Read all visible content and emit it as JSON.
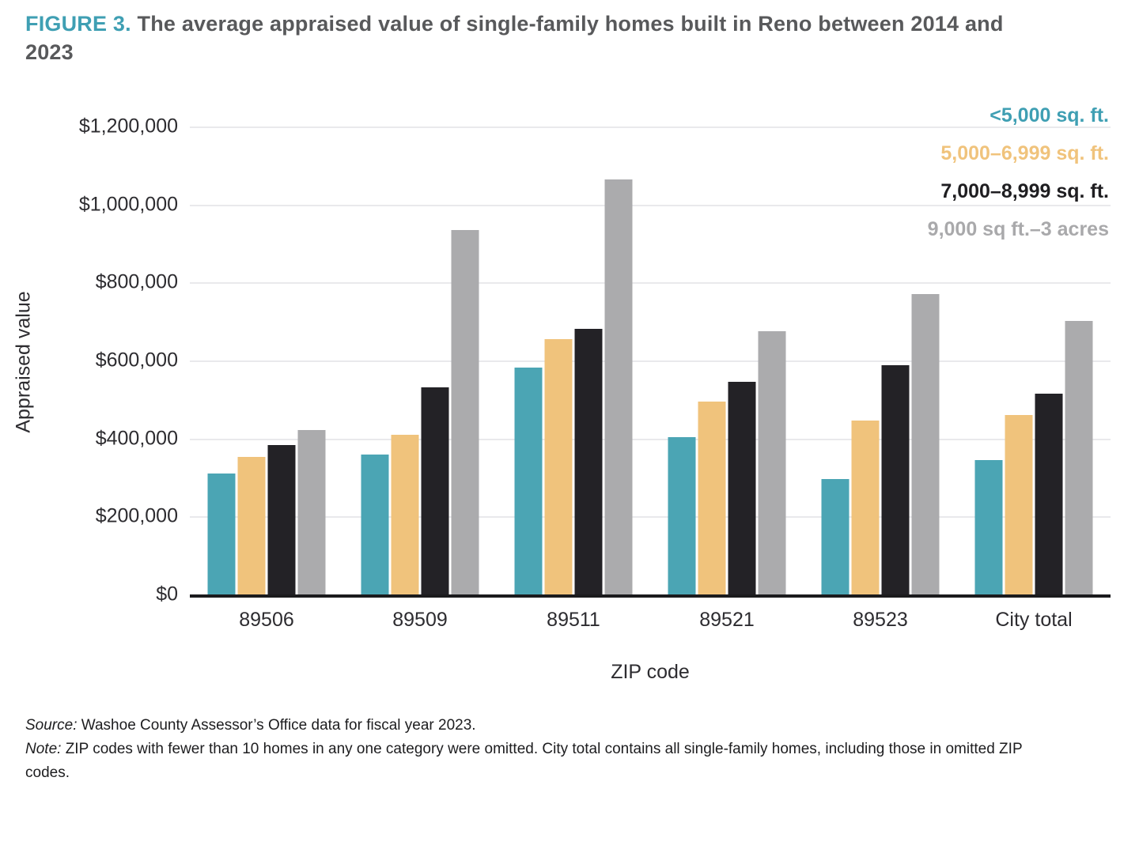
{
  "figure": {
    "label": "FIGURE 3.",
    "title_text": " The average appraised value of single-family homes built in Reno between 2014 and 2023"
  },
  "colors": {
    "accent_teal": "#3f9fb3",
    "title_gray": "#58595b",
    "axis_text": "#2d2c30",
    "gridline": "#e9e9ec",
    "axis_line": "#1b1b1d",
    "series": [
      "#4ba5b4",
      "#f0c37c",
      "#232226",
      "#ababad"
    ]
  },
  "legend": [
    {
      "label": "<5,000 sq. ft.",
      "color": "#3f9fb3"
    },
    {
      "label": "5,000–6,999 sq. ft.",
      "color": "#f0c37c"
    },
    {
      "label": "7,000–8,999 sq. ft.",
      "color": "#1f1e21"
    },
    {
      "label": "9,000 sq ft.–3 acres",
      "color": "#a9a9ab"
    }
  ],
  "chart_data": {
    "type": "bar",
    "title": "FIGURE 3. The average appraised value of single-family homes built in Reno between 2014 and 2023",
    "categories": [
      "89506",
      "89509",
      "89511",
      "89521",
      "89523",
      "City total"
    ],
    "series": [
      {
        "name": "<5,000 sq. ft.",
        "color": "#4ba5b4",
        "values": [
          310000,
          359000,
          582000,
          404000,
          296000,
          344000
        ]
      },
      {
        "name": "5,000–6,999 sq. ft.",
        "color": "#f0c37c",
        "values": [
          353000,
          409000,
          655000,
          494000,
          445000,
          461000
        ]
      },
      {
        "name": "7,000–8,999 sq. ft.",
        "color": "#232226",
        "values": [
          383000,
          532000,
          682000,
          546000,
          587000,
          514000
        ]
      },
      {
        "name": "9,000 sq ft.–3 acres",
        "color": "#ababad",
        "values": [
          422000,
          934000,
          1065000,
          675000,
          770000,
          701000
        ]
      }
    ],
    "xlabel": "ZIP code",
    "ylabel": "Appraised value",
    "ylim": [
      0,
      1200000
    ],
    "grid": true,
    "legend_position": "top-right",
    "yticks": [
      {
        "value": 1200000,
        "label": "$1,200,000"
      },
      {
        "value": 1000000,
        "label": "$1,000,000"
      },
      {
        "value": 800000,
        "label": "$800,000"
      },
      {
        "value": 600000,
        "label": "$600,000"
      },
      {
        "value": 400000,
        "label": "$400,000"
      },
      {
        "value": 200000,
        "label": "$200,000"
      },
      {
        "value": 0,
        "label": "$0"
      }
    ]
  },
  "footer": {
    "source_label": "Source:",
    "source_text": " Washoe County Assessor’s Office data for fiscal year 2023.",
    "note_label": "Note:",
    "note_text": " ZIP codes with fewer than 10 homes in any one category were omitted. City total contains all single-family homes, including those in omitted ZIP codes."
  }
}
